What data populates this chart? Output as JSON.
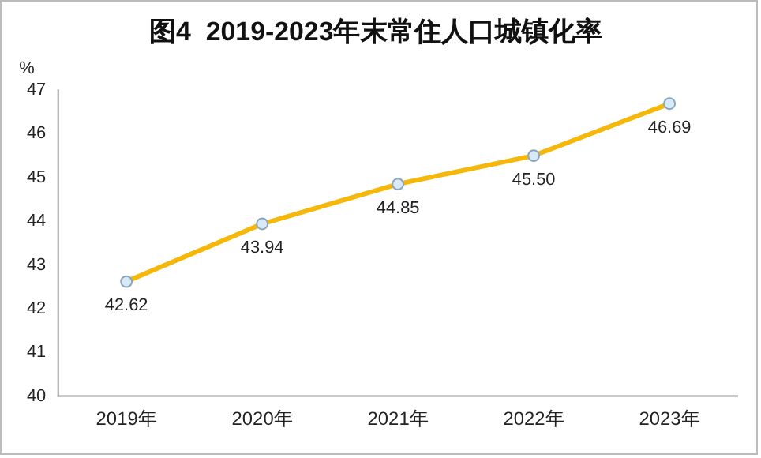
{
  "chart_data": {
    "type": "line",
    "title": "图4  2019-2023年末常住人口城镇化率",
    "ylabel": "%",
    "categories": [
      "2019年",
      "2020年",
      "2021年",
      "2022年",
      "2023年"
    ],
    "series": [
      {
        "color": "#f5b80a",
        "values": [
          42.62,
          43.94,
          44.85,
          45.5,
          46.69
        ],
        "value_labels": [
          "42.62",
          "43.94",
          "44.85",
          "45.50",
          "46.69"
        ]
      }
    ],
    "ylim": [
      40,
      47
    ],
    "yticks": [
      40,
      41,
      42,
      43,
      44,
      45,
      46,
      47
    ],
    "grid": false,
    "legend": false,
    "marker": "circle",
    "line_style": "solid"
  }
}
